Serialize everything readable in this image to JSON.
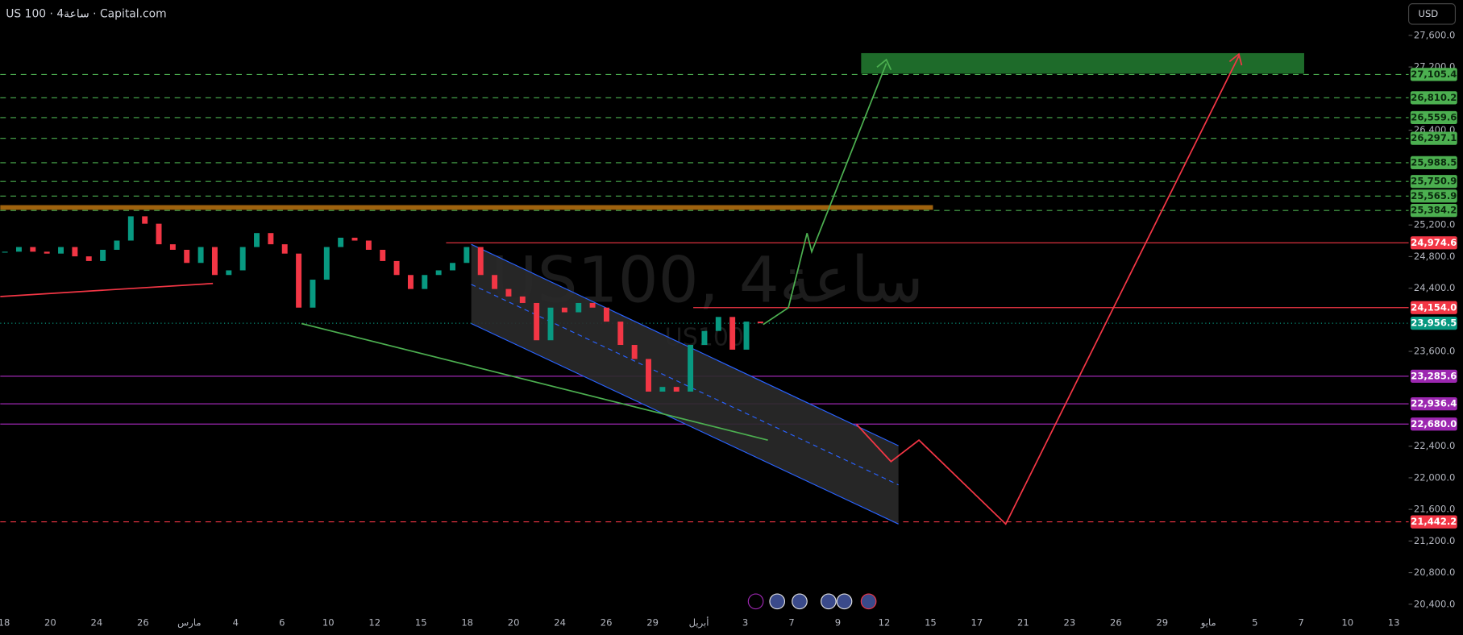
{
  "header": {
    "title": "US 100 · 4ساعة · Capital.com",
    "currency": "USD"
  },
  "watermark": {
    "main": "US100, 4ساعة",
    "sub": "US100"
  },
  "price_axis": {
    "ylim": [
      20317,
      28048
    ],
    "yticks": [
      {
        "value": 27600,
        "label": "27,600.0"
      },
      {
        "value": 27200,
        "label": "27,200.0"
      },
      {
        "value": 26400,
        "label": "26,400.0"
      },
      {
        "value": 25200,
        "label": "25,200.0"
      },
      {
        "value": 24800,
        "label": "24,800.0"
      },
      {
        "value": 24400,
        "label": "24,400.0"
      },
      {
        "value": 23600,
        "label": "23,600.0"
      },
      {
        "value": 22400,
        "label": "22,400.0"
      },
      {
        "value": 22000,
        "label": "22,000.0"
      },
      {
        "value": 21600,
        "label": "21,600.0"
      },
      {
        "value": 21200,
        "label": "21,200.0"
      },
      {
        "value": 20800,
        "label": "20,800.0"
      },
      {
        "value": 20400,
        "label": "20,400.0"
      }
    ]
  },
  "levels": [
    {
      "value": 27105.4,
      "label": "27,105.4",
      "color": "#4caf50",
      "dash": "dashed"
    },
    {
      "value": 26810.2,
      "label": "26,810.2",
      "color": "#4caf50",
      "dash": "dashed"
    },
    {
      "value": 26559.6,
      "label": "26,559.6",
      "color": "#4caf50",
      "dash": "dashed"
    },
    {
      "value": 26297.1,
      "label": "26,297.1",
      "color": "#4caf50",
      "dash": "dashed"
    },
    {
      "value": 25988.5,
      "label": "25,988.5",
      "color": "#4caf50",
      "dash": "dashed"
    },
    {
      "value": 25750.9,
      "label": "25,750.9",
      "color": "#4caf50",
      "dash": "dashed"
    },
    {
      "value": 25565.9,
      "label": "25,565.9",
      "color": "#4caf50",
      "dash": "dashed"
    },
    {
      "value": 25384.2,
      "label": "25,384.2",
      "color": "#4caf50",
      "dash": "dashed"
    },
    {
      "value": 24974.6,
      "label": "24,974.6",
      "color": "#f23645",
      "dash": "solid"
    },
    {
      "value": 24154.0,
      "label": "24,154.0",
      "color": "#f23645",
      "dash": "solid"
    },
    {
      "value": 23956.5,
      "label": "23,956.5",
      "color": "#089981",
      "dash": "dotted"
    },
    {
      "value": 23285.6,
      "label": "23,285.6",
      "color": "#9c27b0",
      "dash": "solid"
    },
    {
      "value": 22936.4,
      "label": "22,936.4",
      "color": "#9c27b0",
      "dash": "solid"
    },
    {
      "value": 22680.0,
      "label": "22,680.0",
      "color": "#9c27b0",
      "dash": "solid"
    },
    {
      "value": 21442.2,
      "label": "21,442.2",
      "color": "#f23645",
      "dash": "dashed"
    }
  ],
  "price": {
    "up_color": "#089981",
    "down_color": "#f23645",
    "closes": [
      24862,
      24921,
      24862,
      24838,
      24921,
      24803,
      24744,
      24886,
      25003,
      25310,
      25216,
      24956,
      24886,
      24720,
      24921,
      24567,
      24626,
      24921,
      25098,
      24956,
      24838,
      24154,
      24508,
      24921,
      25039,
      25003,
      24886,
      24744,
      24567,
      24390,
      24567,
      24626,
      24720,
      24921,
      24567,
      24390,
      24295,
      24213,
      23741,
      24154,
      24095,
      24213,
      24154,
      23977,
      23682,
      23504,
      23091,
      23150,
      23091,
      23682,
      23859,
      24036,
      23622,
      23977,
      23956
    ]
  },
  "time_axis": {
    "labels": [
      "18",
      "20",
      "24",
      "26",
      "مارس",
      "4",
      "6",
      "10",
      "12",
      "15",
      "18",
      "20",
      "24",
      "26",
      "29",
      "أبريل",
      "3",
      "7",
      "9",
      "12",
      "15",
      "17",
      "21",
      "23",
      "26",
      "29",
      "مايو",
      "5",
      "7",
      "10",
      "13"
    ]
  }
}
